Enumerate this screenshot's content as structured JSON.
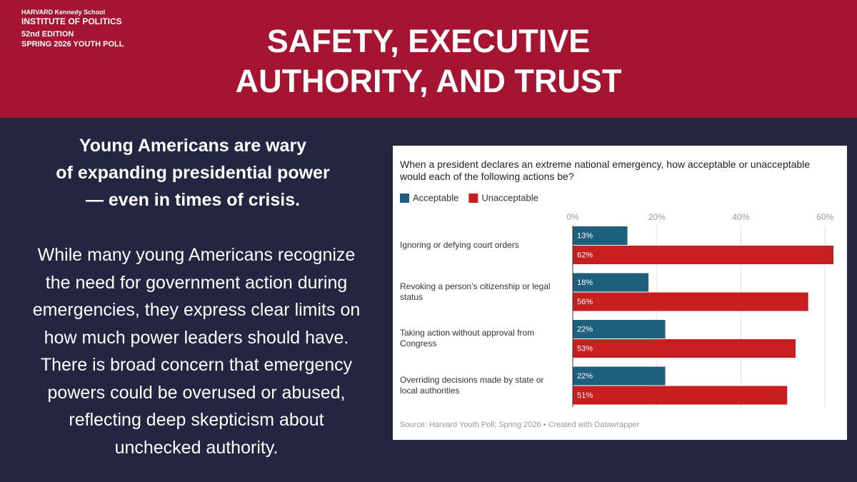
{
  "header": {
    "school": "HARVARD Kennedy School",
    "institute": "INSTITUTE OF POLITICS",
    "edition": "52nd EDITION",
    "poll": "SPRING 2026 YOUTH POLL",
    "title_lines": [
      "SAFETY, EXECUTIVE",
      "AUTHORITY, AND TRUST"
    ]
  },
  "body": {
    "heading_lines": [
      "Young Americans are wary",
      "of expanding presidential power",
      "— even in times of crisis."
    ],
    "paragraph_lines": [
      "While many young Americans recognize",
      "the need for government action during",
      "emergencies, they express clear limits on",
      "how much power leaders should have.",
      "There is broad concern that emergency",
      "powers could be overused or abused,",
      "reflecting deep skepticism about",
      "unchecked authority."
    ]
  },
  "chart_data": {
    "type": "bar",
    "orientation": "horizontal",
    "title": "When a president declares an extreme national emergency, how acceptable or unacceptable would each of the following actions be?",
    "categories": [
      "Ignoring or defying court orders",
      "Revoking a person’s citizenship or legal status",
      "Taking action without approval from Congress",
      "Overriding decisions made by state or local authorities"
    ],
    "series": [
      {
        "name": "Acceptable",
        "color": "#1d5f7d",
        "values": [
          13,
          18,
          22,
          22
        ],
        "value_labels": [
          "13%",
          "18%",
          "22%",
          "22%"
        ]
      },
      {
        "name": "Unacceptable",
        "color": "#c71e1f",
        "values": [
          62,
          56,
          53,
          51
        ],
        "value_labels": [
          "62%",
          "56%",
          "53%",
          "51%"
        ]
      }
    ],
    "xlim": [
      0,
      62
    ],
    "xticks": [
      {
        "value": 0,
        "label": "0%"
      },
      {
        "value": 20,
        "label": "20%"
      },
      {
        "value": 40,
        "label": "40%"
      },
      {
        "value": 60,
        "label": "60%"
      }
    ],
    "grid": true,
    "source": "Source: Harvard Youth Poll; Spring 2026 • Created with Datawrapper"
  }
}
